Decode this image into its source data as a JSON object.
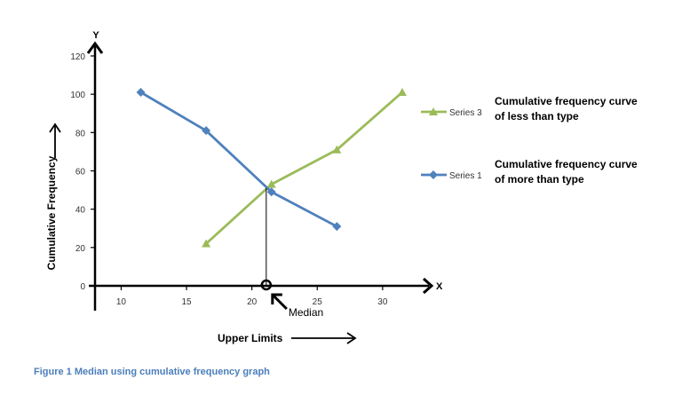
{
  "chart_data": {
    "type": "line",
    "xlabel": "Upper Limits",
    "ylabel": "Cumulative Frequency",
    "x_axis_letter": "X",
    "y_axis_letter": "Y",
    "xlim": [
      8,
      33
    ],
    "ylim": [
      0,
      120
    ],
    "x_ticks": [
      10,
      15,
      20,
      25,
      30
    ],
    "y_ticks": [
      0,
      20,
      40,
      60,
      80,
      100,
      120
    ],
    "grid": false,
    "legend_position": "right",
    "series": [
      {
        "name": "Series 3",
        "description": [
          "Cumulative frequency curve",
          "of less than type"
        ],
        "color": "#9bbb59",
        "marker": "triangle",
        "x": [
          16.5,
          21.5,
          26.5,
          31.5
        ],
        "y": [
          22,
          53,
          71,
          101
        ]
      },
      {
        "name": "Series 1",
        "description": [
          "Cumulative frequency curve",
          "of more than type"
        ],
        "color": "#4f81bd",
        "marker": "diamond",
        "x": [
          11.5,
          16.5,
          21.5,
          26.5
        ],
        "y": [
          101,
          81,
          49,
          31
        ]
      }
    ],
    "annotations": {
      "median_label": "Median",
      "median_x": 21.1,
      "median_y": 51
    }
  },
  "caption": "Figure 1 Median using cumulative frequency graph"
}
